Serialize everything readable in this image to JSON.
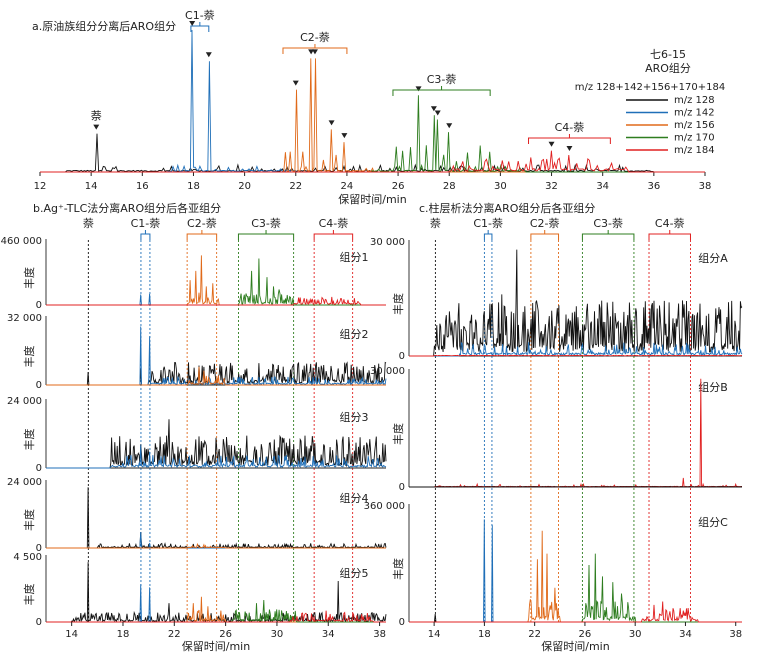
{
  "colors": {
    "c128": "#111111",
    "c142": "#1f6fb8",
    "c156": "#e06a1a",
    "c170": "#2e7d1f",
    "c184": "#e02020",
    "axis": "#222222"
  },
  "chart_data": [
    {
      "type": "line",
      "id": "a",
      "title": "a.原油族组分分离后ARO组分",
      "xlabel": "保留时间/min",
      "xlim": [
        12,
        38
      ],
      "xticks": [
        12,
        14,
        16,
        18,
        20,
        22,
        24,
        26,
        28,
        30,
        32,
        34,
        36,
        38
      ],
      "legend": {
        "title_line1": "七6-15",
        "title_line2": "ARO组分",
        "header": "m/z 128+142+156+170+184",
        "entries": [
          "m/z 128",
          "m/z 142",
          "m/z 156",
          "m/z 170",
          "m/z 184"
        ],
        "placement": "top-right"
      },
      "annotations": [
        {
          "label": "萘",
          "x": 14.2
        },
        {
          "label": "C1-萘",
          "x_from": 17.9,
          "x_to": 18.6
        },
        {
          "label": "C2-萘",
          "x_from": 21.5,
          "x_to": 24.0
        },
        {
          "label": "C3-萘",
          "x_from": 25.8,
          "x_to": 29.6
        },
        {
          "label": "C4-萘",
          "x_from": 31.1,
          "x_to": 34.3
        }
      ],
      "peaks": [
        {
          "series": "m/z 128",
          "x": 14.2,
          "y": 0.27
        },
        {
          "series": "m/z 142",
          "x": 17.95,
          "y": 1.0
        },
        {
          "series": "m/z 142",
          "x": 18.6,
          "y": 0.78
        },
        {
          "series": "m/z 156",
          "x": 22.0,
          "y": 0.58
        },
        {
          "series": "m/z 156",
          "x": 22.6,
          "y": 0.8
        },
        {
          "series": "m/z 156",
          "x": 22.75,
          "y": 0.8
        },
        {
          "series": "m/z 156",
          "x": 23.4,
          "y": 0.3
        },
        {
          "series": "m/z 156",
          "x": 23.9,
          "y": 0.21
        },
        {
          "series": "m/z 170",
          "x": 26.8,
          "y": 0.54
        },
        {
          "series": "m/z 170",
          "x": 27.4,
          "y": 0.4
        },
        {
          "series": "m/z 170",
          "x": 27.55,
          "y": 0.37
        },
        {
          "series": "m/z 170",
          "x": 28.0,
          "y": 0.28
        },
        {
          "series": "m/z 184",
          "x": 32.0,
          "y": 0.15
        },
        {
          "series": "m/z 184",
          "x": 32.7,
          "y": 0.12
        }
      ]
    },
    {
      "type": "line",
      "id": "b",
      "title": "b.Ag⁺-TLC法分离ARO组分后各亚组分",
      "xlabel": "保留时间/min",
      "ylabel": "丰度",
      "xlim": [
        12,
        38.5
      ],
      "xticks": [
        14,
        18,
        22,
        26,
        30,
        34,
        38
      ],
      "group_labels": [
        "萘",
        "C1-萘",
        "C2-萘",
        "C3-萘",
        "C4-萘"
      ],
      "panels": [
        {
          "name": "组分1",
          "ymax_label": "460 000",
          "zero_label": "0"
        },
        {
          "name": "组分2",
          "ymax_label": "32 000",
          "zero_label": "0"
        },
        {
          "name": "组分3",
          "ymax_label": "24 000",
          "zero_label": "0"
        },
        {
          "name": "组分4",
          "ymax_label": "24 000",
          "zero_label": "0"
        },
        {
          "name": "组分5",
          "ymax_label": "4 500",
          "zero_label": "0"
        }
      ]
    },
    {
      "type": "line",
      "id": "c",
      "title": "c.柱层析法分离ARO组分后各亚组分",
      "xlabel": "保留时间/min",
      "ylabel": "丰度",
      "xlim": [
        12,
        38.5
      ],
      "xticks": [
        14,
        18,
        22,
        26,
        30,
        34,
        38
      ],
      "group_labels": [
        "萘",
        "C1-萘",
        "C2-萘",
        "C3-萘",
        "C4-萘"
      ],
      "panels": [
        {
          "name": "组分A",
          "ymax_label": "30 000",
          "zero_label": "0"
        },
        {
          "name": "组分B",
          "ymax_label": "30 000",
          "zero_label": "0"
        },
        {
          "name": "组分C",
          "ymax_label": "360 000",
          "zero_label": "0"
        }
      ]
    }
  ]
}
